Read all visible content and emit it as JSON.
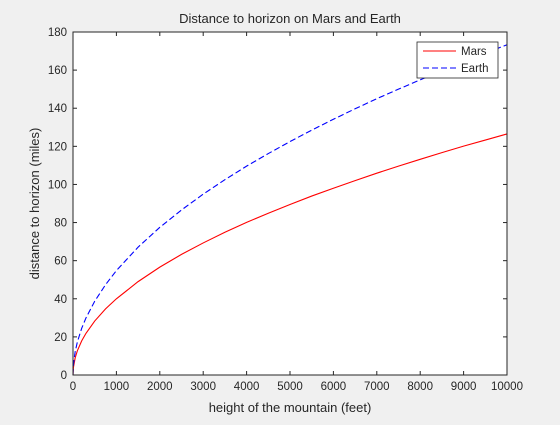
{
  "chart_data": {
    "type": "line",
    "title": "Distance to horizon on Mars and Earth",
    "xlabel": "height of the mountain (feet)",
    "ylabel": "distance to horizon (miles)",
    "xlim": [
      0,
      10000
    ],
    "ylim": [
      0,
      180
    ],
    "x_ticks": [
      0,
      1000,
      2000,
      3000,
      4000,
      5000,
      6000,
      7000,
      8000,
      9000,
      10000
    ],
    "y_ticks": [
      0,
      20,
      40,
      60,
      80,
      100,
      120,
      140,
      160,
      180
    ],
    "grid": false,
    "legend_position": "top-right",
    "series": [
      {
        "name": "Mars",
        "color": "#ff0000",
        "line_style": "solid",
        "x": [
          0,
          10,
          50,
          100,
          200,
          300,
          500,
          750,
          1000,
          1500,
          2000,
          2500,
          3000,
          3500,
          4000,
          4500,
          5000,
          5500,
          6000,
          6500,
          7000,
          7500,
          8000,
          8500,
          9000,
          9500,
          10000
        ],
        "y": [
          0,
          4.0,
          9.0,
          12.7,
          17.9,
          21.9,
          28.3,
          34.7,
          40.0,
          49.0,
          56.6,
          63.3,
          69.3,
          74.9,
          80.1,
          84.9,
          89.5,
          93.9,
          98.0,
          102.0,
          105.9,
          109.6,
          113.2,
          116.7,
          120.1,
          123.3,
          126.5
        ]
      },
      {
        "name": "Earth",
        "color": "#0000ff",
        "line_style": "dashed",
        "x": [
          0,
          10,
          50,
          100,
          200,
          300,
          500,
          750,
          1000,
          1500,
          2000,
          2500,
          3000,
          3500,
          4000,
          4500,
          5000,
          5500,
          6000,
          6500,
          7000,
          7500,
          8000,
          8500,
          9000,
          9500,
          10000
        ],
        "y": [
          0,
          5.5,
          12.2,
          17.3,
          24.5,
          30.0,
          38.7,
          47.4,
          54.8,
          67.1,
          77.5,
          86.6,
          94.9,
          102.5,
          109.6,
          116.2,
          122.5,
          128.5,
          134.2,
          139.7,
          145.0,
          150.0,
          154.9,
          159.7,
          164.3,
          168.9,
          173.3
        ]
      }
    ]
  }
}
